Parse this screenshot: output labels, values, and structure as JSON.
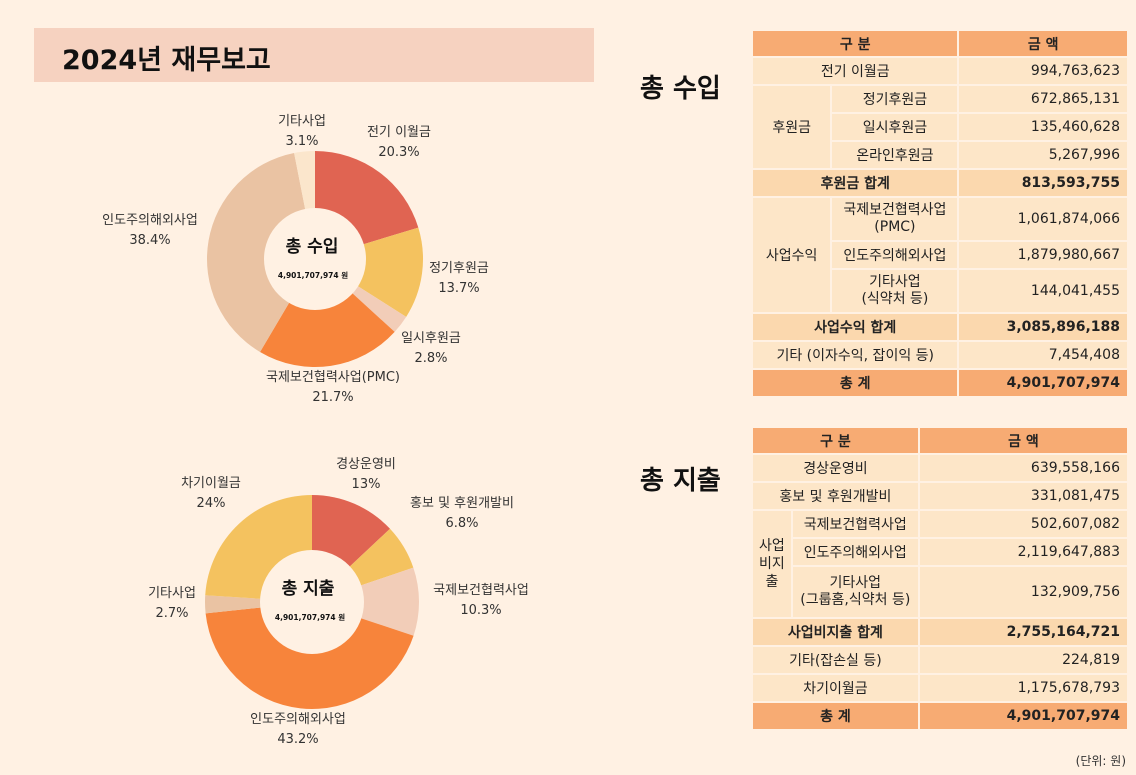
{
  "page": {
    "title": "2024년 재무보고",
    "unit_note": "(단위: 원)"
  },
  "income": {
    "section_label": "총 수입",
    "donut_center_title": "총 수입",
    "donut_center_value": "4,901,707,974 원",
    "table_headers": [
      "구 분",
      "금 액"
    ],
    "rows": {
      "prev_carryover": {
        "label": "전기 이월금",
        "amount": "994,763,623"
      },
      "donation_group": "후원금",
      "regular": {
        "label": "정기후원금",
        "amount": "672,865,131"
      },
      "onetime": {
        "label": "일시후원금",
        "amount": "135,460,628"
      },
      "online": {
        "label": "온라인후원금",
        "amount": "5,267,996"
      },
      "donation_total": {
        "label": "후원금 합계",
        "amount": "813,593,755"
      },
      "business_group": "사업수익",
      "pmc": {
        "label": "국제보건협력사업\n(PMC)",
        "amount": "1,061,874,066"
      },
      "overseas": {
        "label": "인도주의해외사업",
        "amount": "1,879,980,667"
      },
      "other_biz": {
        "label": "기타사업\n(식약처 등)",
        "amount": "144,041,455"
      },
      "business_total": {
        "label": "사업수익 합계",
        "amount": "3,085,896,188"
      },
      "misc": {
        "label": "기타 (이자수익, 잡이익 등)",
        "amount": "7,454,408"
      },
      "grand_total": {
        "label": "총 계",
        "amount": "4,901,707,974"
      }
    }
  },
  "expense": {
    "section_label": "총 지출",
    "donut_center_title": "총 지출",
    "donut_center_value": "4,901,707,974 원",
    "table_headers": [
      "구 분",
      "금 액"
    ],
    "rows": {
      "operating": {
        "label": "경상운영비",
        "amount": "639,558,166"
      },
      "pr": {
        "label": "홍보 및 후원개발비",
        "amount": "331,081,475"
      },
      "biz_group": "사업\n비지\n출",
      "intl": {
        "label": "국제보건협력사업",
        "amount": "502,607,082"
      },
      "overseas": {
        "label": "인도주의해외사업",
        "amount": "2,119,647,883"
      },
      "other_biz": {
        "label": "기타사업\n(그룹홈,식약처 등)",
        "amount": "132,909,756"
      },
      "biz_total": {
        "label": "사업비지출 합계",
        "amount": "2,755,164,721"
      },
      "misc": {
        "label": "기타(잡손실 등)",
        "amount": "224,819"
      },
      "next_carryover": {
        "label": "차기이월금",
        "amount": "1,175,678,793"
      },
      "grand_total": {
        "label": "총 계",
        "amount": "4,901,707,974"
      }
    }
  },
  "chart_data": [
    {
      "type": "pie",
      "title": "총 수입",
      "categories": [
        "전기 이월금",
        "정기후원금",
        "일시후원금",
        "국제보건협력사업(PMC)",
        "인도주의해외사업",
        "기타사업"
      ],
      "values": [
        20.3,
        13.7,
        2.8,
        21.7,
        38.4,
        3.1
      ],
      "value_labels": [
        "20.3%",
        "13.7%",
        "2.8%",
        "21.7%",
        "38.4%",
        "3.1%"
      ],
      "colors": [
        "#e06452",
        "#f4c25f",
        "#f2cdb8",
        "#f7843b",
        "#eac3a3",
        "#fbe6cc"
      ]
    },
    {
      "type": "pie",
      "title": "총 지출",
      "categories": [
        "경상운영비",
        "홍보 및 후원개발비",
        "국제보건협력사업",
        "인도주의해외사업",
        "기타사업",
        "차기이월금"
      ],
      "values": [
        13,
        6.8,
        10.3,
        43.2,
        2.7,
        24
      ],
      "value_labels": [
        "13%",
        "6.8%",
        "10.3%",
        "43.2%",
        "2.7%",
        "24%"
      ],
      "colors": [
        "#e06452",
        "#f4c25f",
        "#f2cdb8",
        "#f7843b",
        "#eac3a3",
        "#f4c25f"
      ]
    }
  ]
}
